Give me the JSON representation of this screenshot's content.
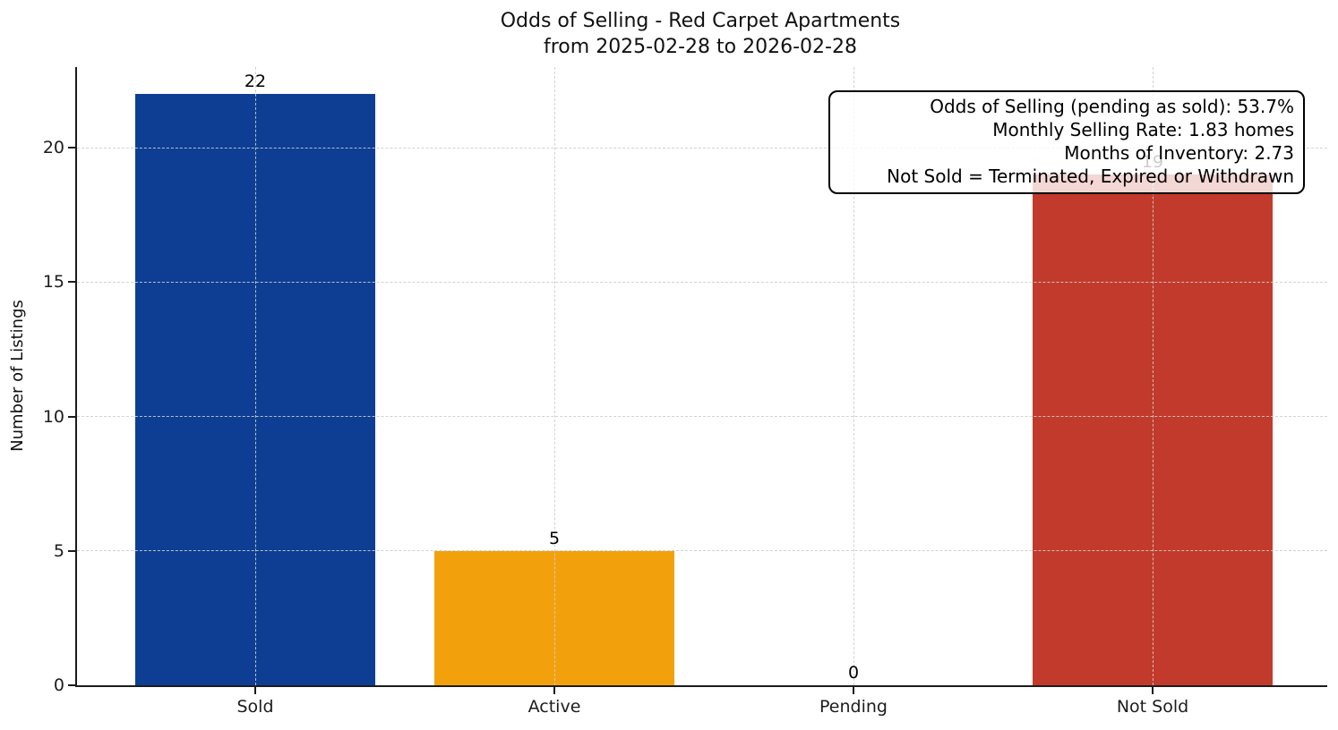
{
  "chart_data": {
    "type": "bar",
    "title": "Odds of Selling - Red Carpet Apartments",
    "subtitle": "from 2025-02-28 to 2026-02-28",
    "categories": [
      "Sold",
      "Active",
      "Pending",
      "Not Sold"
    ],
    "values": [
      22,
      5,
      0,
      19
    ],
    "bar_value_labels": [
      "22",
      "5",
      "0",
      "19"
    ],
    "bar_colors": [
      "#0d3e93",
      "#f2a10d",
      null,
      "#c23a2b"
    ],
    "xlabel": "",
    "ylabel": "Number of Listings",
    "yticks": [
      0,
      5,
      10,
      15,
      20
    ],
    "ylim": [
      0,
      23
    ],
    "grid": "dashed",
    "legend": "none",
    "annotation": {
      "lines": [
        "Odds of Selling (pending as sold): 53.7%",
        "Monthly Selling Rate: 1.83 homes",
        "Months of Inventory: 2.73",
        "Not Sold = Terminated, Expired or Withdrawn"
      ]
    }
  }
}
